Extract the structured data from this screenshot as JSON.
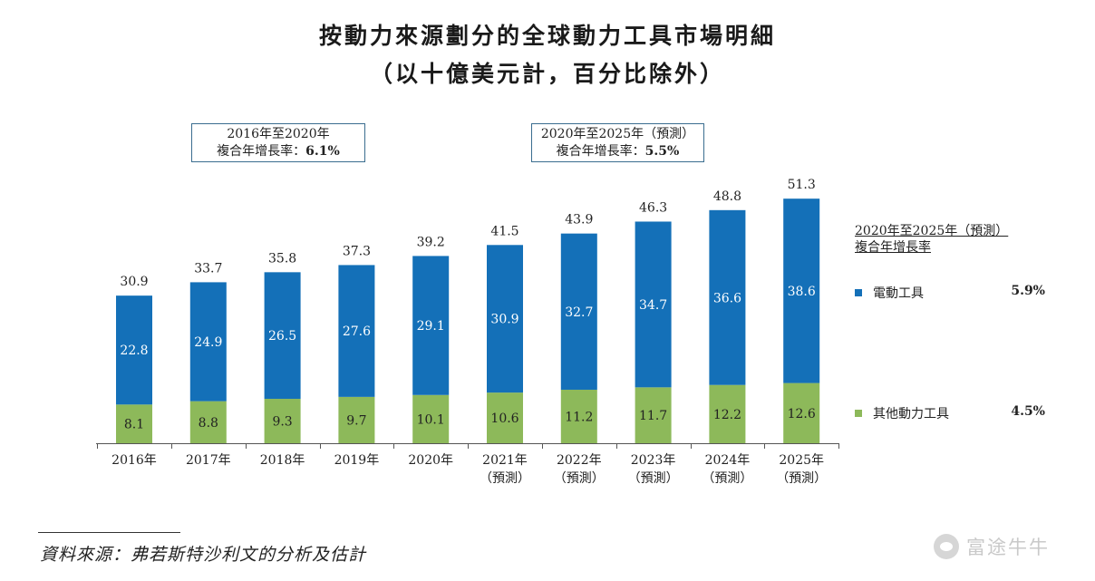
{
  "title": {
    "line1": "按動力來源劃分的全球動力工具市場明細",
    "line2": "（以十億美元計，百分比除外）"
  },
  "cagr_left": {
    "period": "2016年至2020年",
    "label": "複合年增長率：",
    "value": "6.1%"
  },
  "cagr_right": {
    "period": "2020年至2025年（預測）",
    "label": "複合年增長率：",
    "value": "5.5%"
  },
  "legend": {
    "title_line1": "2020年至2025年（預測）",
    "title_line2": "複合年增長率",
    "items": [
      {
        "label": "電動工具",
        "value": "5.9%",
        "color": "#1470b8"
      },
      {
        "label": "其他動力工具",
        "value": "4.5%",
        "color": "#8db95a"
      }
    ]
  },
  "source": "資料來源：弗若斯特沙利文的分析及估計",
  "watermark": "富途牛牛",
  "chart_data": {
    "type": "bar",
    "stacked": true,
    "categories": [
      "2016年",
      "2017年",
      "2018年",
      "2019年",
      "2020年",
      "2021年\n（預測）",
      "2022年\n（預測）",
      "2023年\n（預測）",
      "2024年\n（預測）",
      "2025年\n（預測）"
    ],
    "category_lines": [
      [
        "2016年"
      ],
      [
        "2017年"
      ],
      [
        "2018年"
      ],
      [
        "2019年"
      ],
      [
        "2020年"
      ],
      [
        "2021年",
        "（預測）"
      ],
      [
        "2022年",
        "（預測）"
      ],
      [
        "2023年",
        "（預測）"
      ],
      [
        "2024年",
        "（預測）"
      ],
      [
        "2025年",
        "（預測）"
      ]
    ],
    "series": [
      {
        "name": "其他動力工具",
        "color": "#8db95a",
        "values": [
          8.1,
          8.8,
          9.3,
          9.7,
          10.1,
          10.6,
          11.2,
          11.7,
          12.2,
          12.6
        ]
      },
      {
        "name": "電動工具",
        "color": "#1470b8",
        "values": [
          22.8,
          24.9,
          26.5,
          27.6,
          29.1,
          30.9,
          32.7,
          34.7,
          36.6,
          38.6
        ]
      }
    ],
    "totals": [
      30.9,
      33.7,
      35.8,
      37.3,
      39.2,
      41.5,
      43.9,
      46.3,
      48.8,
      51.3
    ],
    "ylim": [
      0,
      60
    ],
    "grid": false
  }
}
